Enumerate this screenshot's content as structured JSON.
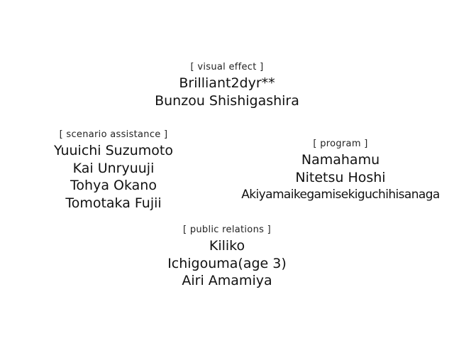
{
  "credits": {
    "visual_effect": {
      "heading": "[ visual effect ]",
      "names": [
        "Brilliant2dyr**",
        "Bunzou Shishigashira"
      ]
    },
    "scenario_assistance": {
      "heading": "[ scenario assistance ]",
      "names": [
        "Yuuichi Suzumoto",
        "Kai Unryuuji",
        "Tohya Okano",
        "Tomotaka Fujii"
      ]
    },
    "program": {
      "heading": "[ program ]",
      "names": [
        "Namahamu",
        "Nitetsu Hoshi",
        "Akiyamaikegamisekiguchihisanaga"
      ]
    },
    "public_relations": {
      "heading": "[ public relations ]",
      "names": [
        "Kiliko",
        "Ichigouma(age 3)",
        "Airi Amamiya"
      ]
    }
  },
  "colors": {
    "background": "#ffffff",
    "text": "#111111"
  }
}
